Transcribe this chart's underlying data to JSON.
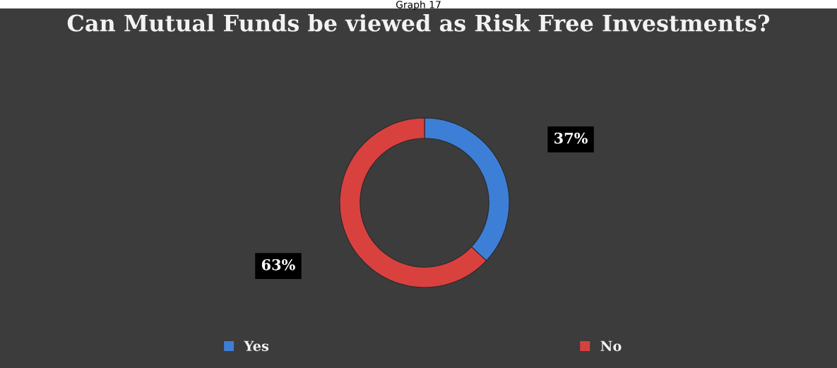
{
  "chart_data": {
    "type": "donut",
    "title": "Can Mutual Funds be viewed as Risk Free Investments?",
    "annotations": [
      "Graph 17"
    ],
    "categories": [
      "Yes",
      "No"
    ],
    "values": [
      37,
      63
    ],
    "colors": [
      "#3d7fd6",
      "#d9413f"
    ],
    "value_labels": [
      "37%",
      "63%"
    ],
    "legend": "bottom"
  }
}
